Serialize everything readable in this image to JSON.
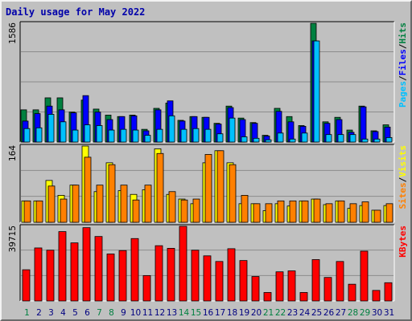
{
  "title": "Daily usage for May 2022",
  "colors": {
    "background": "#c0c0c0",
    "title": "#0000aa",
    "hits": "#008040",
    "files": "#0000ff",
    "pages": "#00c0ff",
    "visits": "#ffff00",
    "sites": "#ff8000",
    "kbytes": "#ff0000",
    "weekday_tick": "#000080",
    "weekend_tick": "#008040"
  },
  "panels": {
    "top": {
      "ymax_label": "1586",
      "legend": [
        "Pages",
        "Files",
        "Hits"
      ]
    },
    "middle": {
      "ymax_label": "164",
      "legend": [
        "Sites",
        "Visits"
      ]
    },
    "bottom": {
      "ymax_label": "39715",
      "legend": [
        "KBytes"
      ]
    }
  },
  "legend_separator": "/",
  "chart_data": {
    "type": "bar",
    "title": "Daily usage for May 2022",
    "categories": [
      "1",
      "2",
      "3",
      "4",
      "5",
      "6",
      "7",
      "8",
      "9",
      "10",
      "11",
      "12",
      "13",
      "14",
      "15",
      "16",
      "17",
      "18",
      "19",
      "20",
      "21",
      "22",
      "23",
      "24",
      "25",
      "26",
      "27",
      "28",
      "29",
      "30",
      "31"
    ],
    "weekend_days": [
      "1",
      "7",
      "8",
      "14",
      "15",
      "21",
      "22",
      "28",
      "29"
    ],
    "panels": [
      {
        "name": "top",
        "ylim": [
          0,
          1586
        ],
        "grid": true,
        "series": [
          {
            "name": "Hits",
            "values": [
              430,
              430,
              590,
              590,
              400,
              560,
              440,
              360,
              340,
              360,
              170,
              450,
              520,
              290,
              340,
              330,
              250,
              480,
              320,
              260,
              90,
              450,
              340,
              220,
              1586,
              270,
              330,
              160,
              480,
              150,
              230
            ]
          },
          {
            "name": "Files",
            "values": [
              280,
              380,
              480,
              430,
              390,
              620,
              400,
              300,
              340,
              350,
              150,
              430,
              550,
              280,
              340,
              330,
              240,
              460,
              300,
              250,
              80,
              410,
              270,
              210,
              1350,
              250,
              300,
              130,
              470,
              140,
              200
            ]
          },
          {
            "name": "Pages",
            "values": [
              180,
              190,
              370,
              270,
              160,
              230,
              220,
              160,
              170,
              160,
              90,
              170,
              350,
              170,
              180,
              170,
              110,
              320,
              70,
              50,
              30,
              120,
              40,
              120,
              1350,
              100,
              100,
              100,
              40,
              40,
              60
            ]
          }
        ]
      },
      {
        "name": "middle",
        "ylim": [
          0,
          164
        ],
        "grid": true,
        "series": [
          {
            "name": "Visits",
            "values": [
              46,
              46,
              90,
              58,
              80,
              164,
              66,
              128,
              68,
              60,
              70,
              158,
              60,
              50,
              40,
              128,
              154,
              128,
              40,
              40,
              25,
              40,
              35,
              46,
              50,
              38,
              46,
              30,
              36,
              26,
              36
            ]
          },
          {
            "name": "Sites",
            "values": [
              46,
              46,
              78,
              50,
              80,
              140,
              80,
              124,
              80,
              48,
              80,
              148,
              66,
              48,
              50,
              146,
              154,
              124,
              58,
              40,
              40,
              46,
              46,
              46,
              50,
              40,
              46,
              40,
              44,
              26,
              40
            ]
          }
        ]
      },
      {
        "name": "bottom",
        "ylim": [
          0,
          39715
        ],
        "grid": true,
        "series": [
          {
            "name": "KBytes",
            "values": [
              16600,
              28200,
              27000,
              36900,
              30900,
              39000,
              34300,
              25000,
              26800,
              33200,
              13500,
              29400,
              28000,
              39715,
              27000,
              24000,
              21000,
              27800,
              21500,
              13000,
              4500,
              15500,
              16000,
              4500,
              22000,
              12500,
              21000,
              8900,
              26500,
              5600,
              9700
            ]
          }
        ]
      }
    ]
  }
}
